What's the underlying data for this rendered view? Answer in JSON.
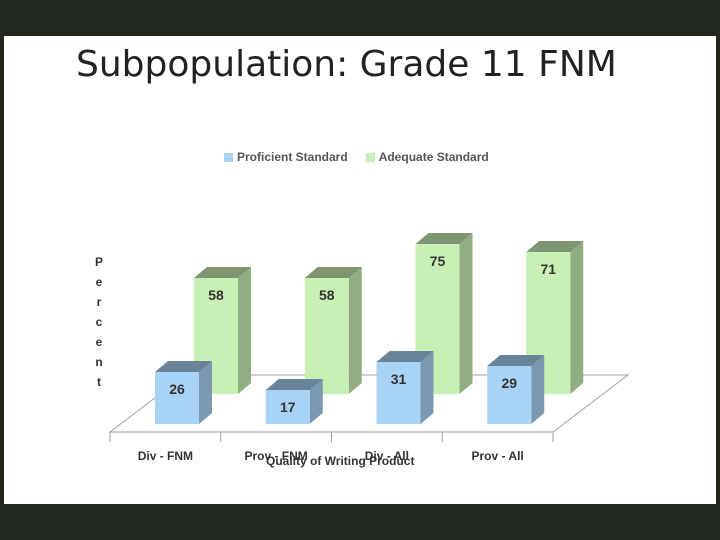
{
  "slide": {
    "title": "Subpopulation: Grade 11 FNM"
  },
  "colors": {
    "background": "#222720",
    "proficient": "#a9d3f5",
    "adequate": "#c9f0b4"
  },
  "chart_data": {
    "type": "bar",
    "three_d": true,
    "title": "",
    "xlabel": "Quality of Writing Product",
    "ylabel": "Percent",
    "ylim": [
      0,
      100
    ],
    "legend_position": "top",
    "grid": false,
    "categories": [
      "Div - FNM",
      "Prov - FNM",
      "Div - All",
      "Prov - All"
    ],
    "series": [
      {
        "name": "Proficient Standard",
        "values": [
          26,
          17,
          31,
          29
        ]
      },
      {
        "name": "Adequate Standard",
        "values": [
          58,
          58,
          75,
          71
        ]
      }
    ]
  }
}
